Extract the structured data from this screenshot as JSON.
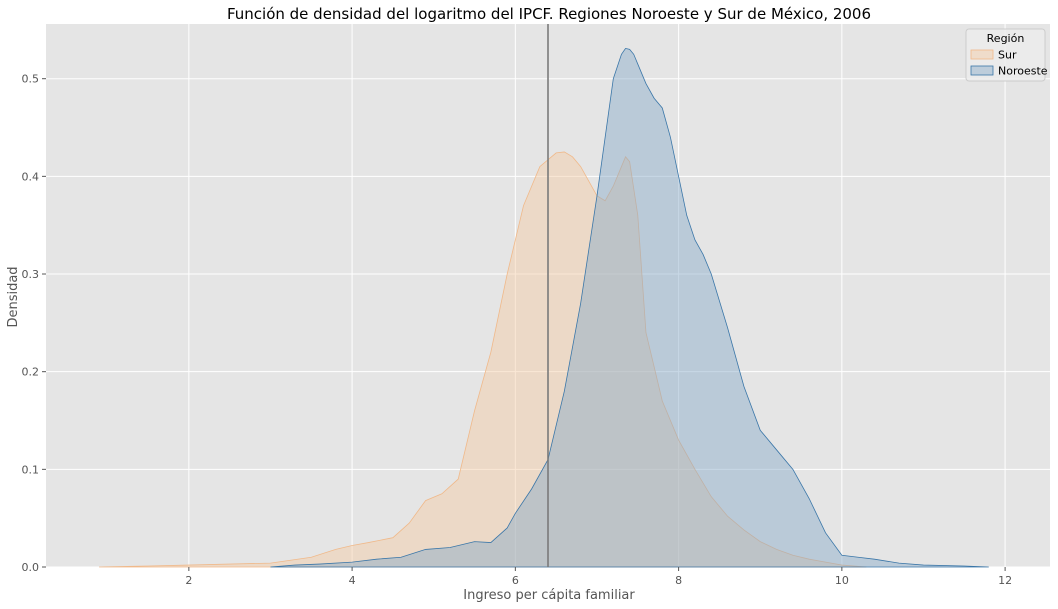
{
  "chart_data": {
    "type": "area",
    "title": "Función de densidad del logaritmo del IPCF. Regiones Noroeste y Sur de México, 2006",
    "xlabel": "Ingreso per cápita familiar",
    "ylabel": "Densidad",
    "xlim": [
      0.25,
      12.55
    ],
    "ylim": [
      0,
      0.556
    ],
    "xticks": [
      2,
      4,
      6,
      8,
      10,
      12
    ],
    "yticks": [
      0.0,
      0.1,
      0.2,
      0.3,
      0.4,
      0.5
    ],
    "xtick_labels": [
      "2",
      "4",
      "6",
      "8",
      "10",
      "12"
    ],
    "ytick_labels": [
      "0.0",
      "0.1",
      "0.2",
      "0.3",
      "0.4",
      "0.5"
    ],
    "grid": true,
    "background": "#e5e5e5",
    "vertical_line": {
      "x": 6.4,
      "color": "#7a7a7a"
    },
    "legend": {
      "title": "Región",
      "placement": "top-right",
      "entries": [
        {
          "label": "Sur",
          "fill": "#f4c9a1",
          "stroke": "#f0b98a"
        },
        {
          "label": "Noroeste",
          "fill": "#86a8c8",
          "stroke": "#3a76a8"
        }
      ]
    },
    "series": [
      {
        "name": "Sur",
        "fill": "#f4c9a1",
        "stroke": "#f0b98a",
        "x": [
          0.9,
          1.5,
          2.0,
          2.5,
          3.0,
          3.5,
          3.8,
          4.0,
          4.2,
          4.5,
          4.7,
          4.9,
          5.1,
          5.3,
          5.5,
          5.7,
          5.9,
          6.1,
          6.3,
          6.5,
          6.6,
          6.7,
          6.8,
          6.9,
          7.0,
          7.1,
          7.2,
          7.3,
          7.35,
          7.4,
          7.5,
          7.6,
          7.8,
          8.0,
          8.2,
          8.4,
          8.6,
          8.8,
          9.0,
          9.2,
          9.4,
          9.6,
          9.8,
          10.0,
          10.3
        ],
        "y": [
          0.0,
          0.001,
          0.002,
          0.003,
          0.004,
          0.01,
          0.018,
          0.022,
          0.025,
          0.03,
          0.045,
          0.068,
          0.075,
          0.09,
          0.16,
          0.22,
          0.3,
          0.37,
          0.41,
          0.424,
          0.425,
          0.42,
          0.41,
          0.395,
          0.38,
          0.375,
          0.39,
          0.41,
          0.42,
          0.415,
          0.36,
          0.24,
          0.17,
          0.13,
          0.1,
          0.072,
          0.052,
          0.038,
          0.026,
          0.018,
          0.012,
          0.008,
          0.005,
          0.002,
          0.0
        ]
      },
      {
        "name": "Noroeste",
        "fill": "#86a8c8",
        "stroke": "#3a76a8",
        "x": [
          3.0,
          3.3,
          3.6,
          4.0,
          4.3,
          4.6,
          4.9,
          5.2,
          5.5,
          5.7,
          5.9,
          6.0,
          6.2,
          6.4,
          6.6,
          6.8,
          7.0,
          7.1,
          7.2,
          7.3,
          7.35,
          7.4,
          7.45,
          7.5,
          7.6,
          7.7,
          7.8,
          7.9,
          8.0,
          8.1,
          8.2,
          8.3,
          8.4,
          8.6,
          8.8,
          9.0,
          9.2,
          9.4,
          9.6,
          9.8,
          10.0,
          10.2,
          10.4,
          10.7,
          11.0,
          11.5,
          11.8
        ],
        "y": [
          0.0,
          0.002,
          0.003,
          0.005,
          0.008,
          0.01,
          0.018,
          0.02,
          0.026,
          0.025,
          0.04,
          0.055,
          0.08,
          0.11,
          0.18,
          0.27,
          0.38,
          0.44,
          0.5,
          0.525,
          0.531,
          0.53,
          0.525,
          0.515,
          0.495,
          0.48,
          0.47,
          0.44,
          0.4,
          0.36,
          0.335,
          0.32,
          0.3,
          0.245,
          0.185,
          0.14,
          0.12,
          0.1,
          0.07,
          0.035,
          0.012,
          0.01,
          0.008,
          0.004,
          0.002,
          0.001,
          0.0
        ]
      }
    ]
  }
}
